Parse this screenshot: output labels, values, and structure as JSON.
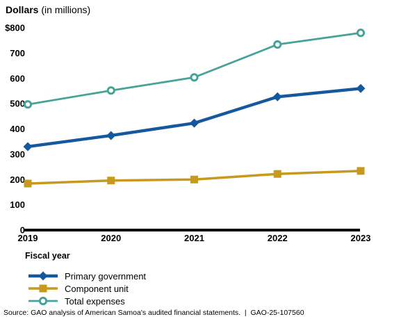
{
  "header": {
    "title_bold": "Dollars",
    "title_unit": " (in millions)"
  },
  "chart_data": {
    "type": "line",
    "title": "Dollars (in millions)",
    "xlabel": "Fiscal year",
    "ylabel": "Dollars in millions",
    "categories": [
      "2019",
      "2020",
      "2021",
      "2022",
      "2023"
    ],
    "y_ticks": [
      "$800",
      "700",
      "600",
      "500",
      "400",
      "300",
      "200",
      "100",
      "0"
    ],
    "y_tick_values": [
      800,
      700,
      600,
      500,
      400,
      300,
      200,
      100,
      0
    ],
    "ylim": [
      0,
      800
    ],
    "grid": false,
    "legend_position": "bottom-left",
    "axis_color": "#000000",
    "series": [
      {
        "name": "Primary government",
        "marker": "diamond-icon",
        "color": "#14589e",
        "line_width": 4.4,
        "values": [
          330,
          374,
          423,
          527,
          560
        ]
      },
      {
        "name": "Component unit",
        "marker": "square-icon",
        "color": "#c7991e",
        "line_width": 3.5,
        "values": [
          184,
          196,
          200,
          222,
          234
        ]
      },
      {
        "name": "Total expenses",
        "marker": "circle-open-icon",
        "color": "#47a39a",
        "line_width": 2.8,
        "values": [
          497,
          552,
          604,
          734,
          780
        ]
      }
    ]
  },
  "footer": {
    "source": "Source: GAO analysis of American Samoa's audited financial statements.  |  GAO-25-107560"
  }
}
